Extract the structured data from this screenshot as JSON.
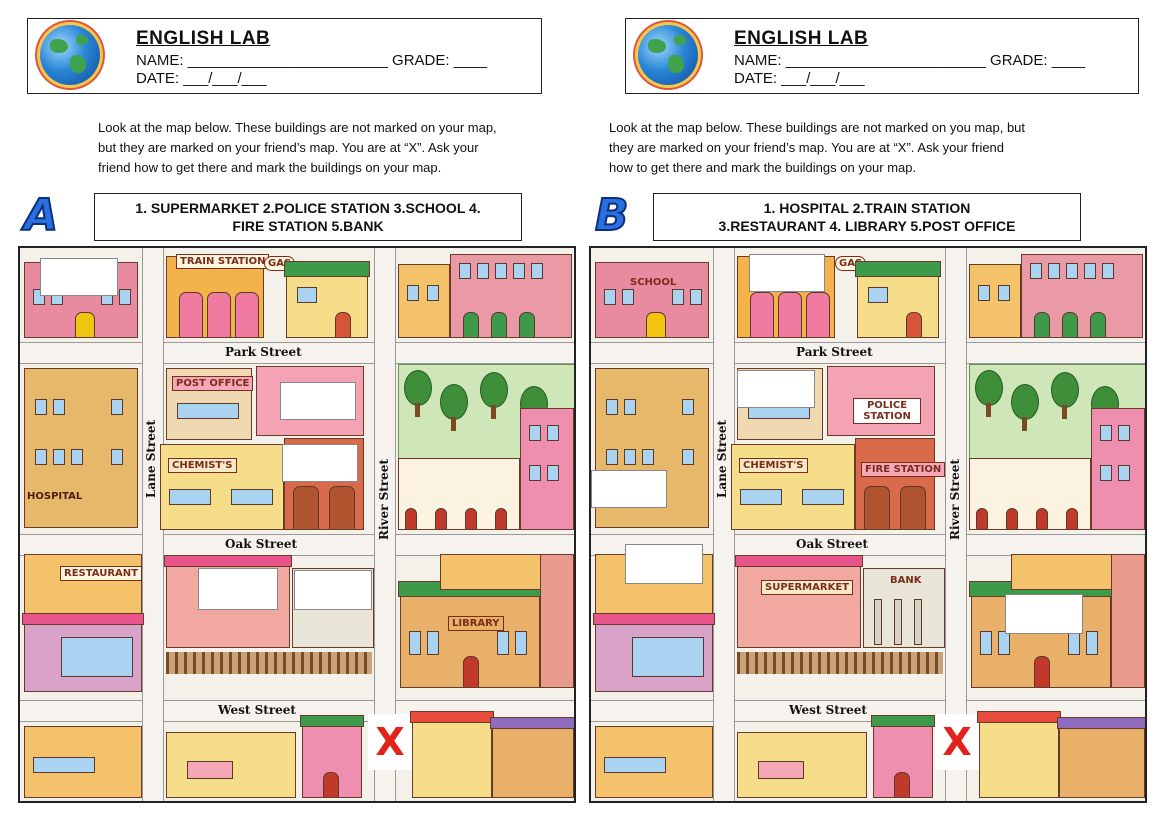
{
  "worksheet_a": {
    "header": {
      "title": "ENGLISH LAB",
      "name_line": "NAME: ________________________ GRADE: ____",
      "date_line": "DATE: ___/___/___"
    },
    "instructions": "Look at the map below. These buildings are not marked on your map,\nbut they are marked on your friend’s map. You are at “X”. Ask your\nfriend how to get there and mark the buildings on your map.",
    "letter": "A",
    "list_line1": "1. SUPERMARKET  2.POLICE STATION  3.SCHOOL  4.",
    "list_line2": "FIRE STATION          5.BANK",
    "map": {
      "streets": {
        "park": "Park Street",
        "oak": "Oak Street",
        "west": "West Street",
        "lane": "Lane Street",
        "river": "River Street"
      },
      "signs": {
        "train_station": "TRAIN STATION",
        "gas": "GAS",
        "post_office": "POST OFFICE",
        "chemists": "CHEMIST'S",
        "hospital": "HOSPITAL",
        "restaurant": "RESTAURANT",
        "library": "LIBRARY"
      },
      "x_mark": "X"
    }
  },
  "worksheet_b": {
    "header": {
      "title": "ENGLISH LAB",
      "name_line": "NAME: ________________________ GRADE: ____",
      "date_line": "DATE: ___/___/___"
    },
    "instructions": "Look at the map below. These buildings are not marked on you map, but\nthey are marked on your friend’s map. You are at “X”. Ask your friend\nhow to get there and mark the buildings on your map.",
    "letter": "B",
    "list_line1": "1. HOSPITAL          2.TRAIN STATION",
    "list_line2": "3.RESTAURANT  4. LIBRARY       5.POST OFFICE",
    "map": {
      "streets": {
        "park": "Park Street",
        "oak": "Oak Street",
        "west": "West Street",
        "lane": "Lane Street",
        "river": "River Street"
      },
      "signs": {
        "school": "SCHOOL",
        "gas": "GAS",
        "police_station": "POLICE STATION",
        "chemists": "CHEMIST'S",
        "fire_station": "FIRE STATION",
        "supermarket": "SUPERMARKET",
        "bank": "BANK"
      },
      "x_mark": "X"
    }
  }
}
